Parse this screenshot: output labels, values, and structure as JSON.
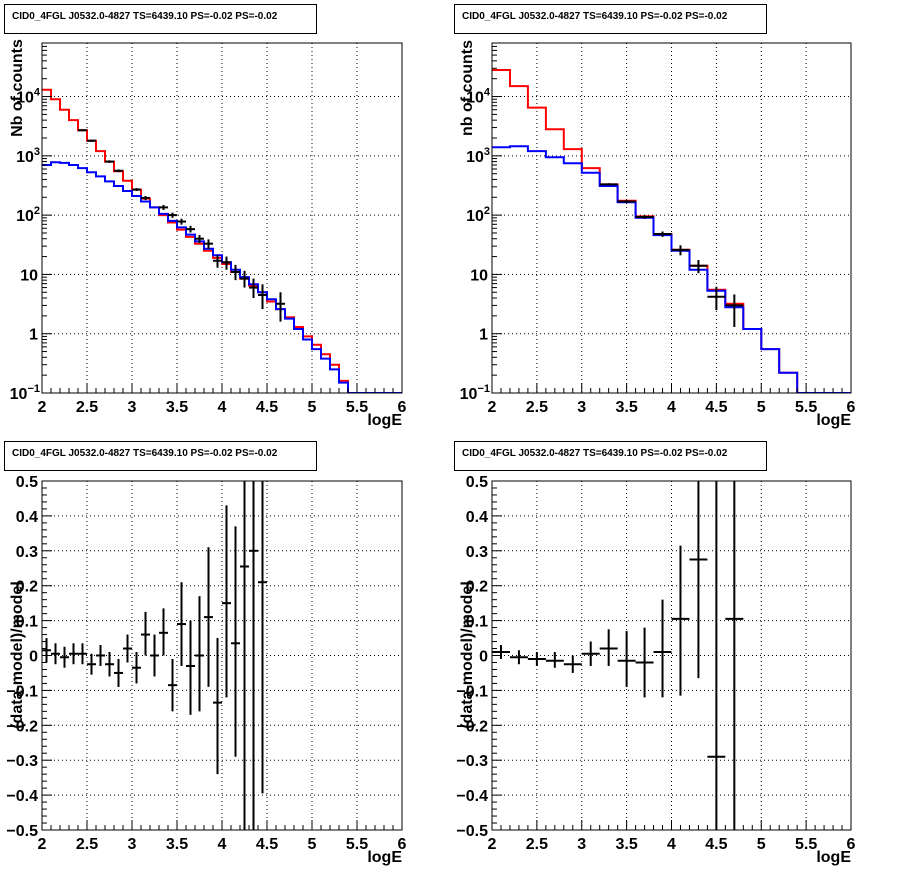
{
  "chart_data": [
    {
      "type": "line",
      "title": "CID0_4FGL J0532.0-4827 TS=6439.10 PS=-0.02 PS=-0.02",
      "xlabel": "logE",
      "ylabel": "Nb of counts",
      "xlim": [
        2,
        6
      ],
      "ylim": [
        0.1,
        80000
      ],
      "yscale": "log",
      "grid": true,
      "x_ticks": [
        "2",
        "2.5",
        "3",
        "3.5",
        "4",
        "4.5",
        "5",
        "5.5",
        "6"
      ],
      "y_ticks": [
        {
          "value": 0.1,
          "label": "10",
          "sup": "−1"
        },
        {
          "value": 1,
          "label": "1",
          "sup": ""
        },
        {
          "value": 10,
          "label": "10",
          "sup": ""
        },
        {
          "value": 100,
          "label": "10",
          "sup": "2"
        },
        {
          "value": 1000,
          "label": "10",
          "sup": "3"
        },
        {
          "value": 10000,
          "label": "10",
          "sup": "4"
        }
      ],
      "bin_edges": [
        2.0,
        2.1,
        2.2,
        2.3,
        2.4,
        2.5,
        2.6,
        2.7,
        2.8,
        2.9,
        3.0,
        3.1,
        3.2,
        3.3,
        3.4,
        3.5,
        3.6,
        3.7,
        3.8,
        3.9,
        4.0,
        4.1,
        4.2,
        4.3,
        4.4,
        4.5,
        4.6,
        4.7,
        4.8,
        4.9,
        5.0,
        5.1,
        5.2,
        5.3,
        5.4,
        5.5,
        5.6,
        5.7,
        5.8,
        5.9,
        6.0
      ],
      "series": [
        {
          "color": "#ff0000",
          "style": "step",
          "values": [
            13000,
            9000,
            6000,
            4000,
            2700,
            1800,
            1200,
            800,
            550,
            380,
            270,
            190,
            135,
            100,
            75,
            57,
            43,
            33,
            25,
            19,
            15,
            11,
            8.5,
            6.5,
            5,
            3.5,
            2.6,
            1.9,
            1.3,
            0.9,
            0.65,
            0.45,
            0.3,
            0.16,
            0.1,
            0.1,
            0.1,
            0.1,
            0.1,
            0.1
          ]
        },
        {
          "color": "#0000ff",
          "style": "step",
          "values": [
            700,
            780,
            760,
            700,
            620,
            530,
            450,
            370,
            310,
            255,
            210,
            170,
            135,
            105,
            80,
            62,
            47,
            36,
            27,
            21,
            16,
            12,
            9,
            6.8,
            5,
            3.8,
            2.6,
            1.8,
            1.2,
            0.8,
            0.55,
            0.38,
            0.25,
            0.15,
            0.1,
            0.1,
            0.1,
            0.1,
            0.1,
            0.1
          ]
        }
      ],
      "points": [
        {
          "x": 2.45,
          "y": 2700,
          "xerr": 0.05,
          "ylo": 2600,
          "yhi": 2800
        },
        {
          "x": 2.55,
          "y": 1800,
          "xerr": 0.05,
          "ylo": 1720,
          "yhi": 1880
        },
        {
          "x": 2.75,
          "y": 800,
          "xerr": 0.05,
          "ylo": 760,
          "yhi": 840
        },
        {
          "x": 2.85,
          "y": 560,
          "xerr": 0.05,
          "ylo": 530,
          "yhi": 590
        },
        {
          "x": 3.05,
          "y": 270,
          "xerr": 0.05,
          "ylo": 255,
          "yhi": 285
        },
        {
          "x": 3.15,
          "y": 195,
          "xerr": 0.05,
          "ylo": 180,
          "yhi": 210
        },
        {
          "x": 3.35,
          "y": 135,
          "xerr": 0.05,
          "ylo": 122,
          "yhi": 148
        },
        {
          "x": 3.45,
          "y": 100,
          "xerr": 0.05,
          "ylo": 90,
          "yhi": 110
        },
        {
          "x": 3.55,
          "y": 78,
          "xerr": 0.05,
          "ylo": 69,
          "yhi": 87
        },
        {
          "x": 3.65,
          "y": 58,
          "xerr": 0.05,
          "ylo": 51,
          "yhi": 66
        },
        {
          "x": 3.75,
          "y": 40,
          "xerr": 0.05,
          "ylo": 34,
          "yhi": 46
        },
        {
          "x": 3.85,
          "y": 33,
          "xerr": 0.05,
          "ylo": 27,
          "yhi": 39
        },
        {
          "x": 3.95,
          "y": 17,
          "xerr": 0.05,
          "ylo": 13,
          "yhi": 21
        },
        {
          "x": 4.05,
          "y": 16,
          "xerr": 0.05,
          "ylo": 12,
          "yhi": 20
        },
        {
          "x": 4.15,
          "y": 11,
          "xerr": 0.05,
          "ylo": 8,
          "yhi": 14.5
        },
        {
          "x": 4.25,
          "y": 8.5,
          "xerr": 0.05,
          "ylo": 6,
          "yhi": 11.5
        },
        {
          "x": 4.35,
          "y": 6,
          "xerr": 0.05,
          "ylo": 4,
          "yhi": 8.5
        },
        {
          "x": 4.45,
          "y": 4.5,
          "xerr": 0.05,
          "ylo": 2.6,
          "yhi": 6.8
        },
        {
          "x": 4.65,
          "y": 3.2,
          "xerr": 0.05,
          "ylo": 1.6,
          "yhi": 5
        }
      ]
    },
    {
      "type": "line",
      "title": "CID0_4FGL J0532.0-4827 TS=6439.10 PS=-0.02 PS=-0.02",
      "xlabel": "logE",
      "ylabel": "nb of counts",
      "xlim": [
        2,
        6
      ],
      "ylim": [
        0.1,
        80000
      ],
      "yscale": "log",
      "grid": true,
      "x_ticks": [
        "2",
        "2.5",
        "3",
        "3.5",
        "4",
        "4.5",
        "5",
        "5.5",
        "6"
      ],
      "y_ticks": [
        {
          "value": 0.1,
          "label": "10",
          "sup": "−1"
        },
        {
          "value": 1,
          "label": "1",
          "sup": ""
        },
        {
          "value": 10,
          "label": "10",
          "sup": ""
        },
        {
          "value": 100,
          "label": "10",
          "sup": "2"
        },
        {
          "value": 1000,
          "label": "10",
          "sup": "3"
        },
        {
          "value": 10000,
          "label": "10",
          "sup": "4"
        }
      ],
      "bin_edges": [
        2.0,
        2.2,
        2.4,
        2.6,
        2.8,
        3.0,
        3.2,
        3.4,
        3.6,
        3.8,
        4.0,
        4.2,
        4.4,
        4.6,
        4.8,
        5.0,
        5.2,
        5.4,
        5.6,
        5.8,
        6.0
      ],
      "series": [
        {
          "color": "#ff0000",
          "style": "step",
          "values": [
            28000,
            15000,
            6500,
            2800,
            1300,
            620,
            330,
            175,
            95,
            48,
            26,
            14,
            5.5,
            3.2,
            1.2,
            0.55,
            0.22,
            0.1,
            0.1,
            0.1
          ]
        },
        {
          "color": "#0000ff",
          "style": "step",
          "values": [
            1400,
            1450,
            1200,
            950,
            750,
            520,
            310,
            165,
            90,
            46,
            25,
            12,
            5.3,
            2.8,
            1.2,
            0.55,
            0.22,
            0.1,
            0.1,
            0.1
          ]
        }
      ],
      "points": [
        {
          "x": 3.3,
          "y": 330,
          "xerr": 0.1,
          "ylo": 315,
          "yhi": 345
        },
        {
          "x": 3.5,
          "y": 170,
          "xerr": 0.1,
          "ylo": 160,
          "yhi": 180
        },
        {
          "x": 3.7,
          "y": 93,
          "xerr": 0.1,
          "ylo": 86,
          "yhi": 100
        },
        {
          "x": 3.9,
          "y": 48,
          "xerr": 0.1,
          "ylo": 43,
          "yhi": 53
        },
        {
          "x": 4.1,
          "y": 26,
          "xerr": 0.1,
          "ylo": 21,
          "yhi": 31
        },
        {
          "x": 4.3,
          "y": 14,
          "xerr": 0.1,
          "ylo": 10.5,
          "yhi": 17.5
        },
        {
          "x": 4.5,
          "y": 4.2,
          "xerr": 0.1,
          "ylo": 2.5,
          "yhi": 6.2
        },
        {
          "x": 4.7,
          "y": 3.0,
          "xerr": 0.1,
          "ylo": 1.3,
          "yhi": 4.6
        }
      ]
    },
    {
      "type": "scatter",
      "title": "CID0_4FGL J0532.0-4827 TS=6439.10 PS=-0.02 PS=-0.02",
      "xlabel": "logE",
      "ylabel": "(data-model)/model",
      "xlim": [
        2,
        6
      ],
      "ylim": [
        -0.5,
        0.5
      ],
      "yscale": "linear",
      "grid": true,
      "x_ticks": [
        "2",
        "2.5",
        "3",
        "3.5",
        "4",
        "4.5",
        "5",
        "5.5",
        "6"
      ],
      "y_ticks": [
        {
          "value": -0.5,
          "label": "−0.5"
        },
        {
          "value": -0.4,
          "label": "−0.4"
        },
        {
          "value": -0.3,
          "label": "−0.3"
        },
        {
          "value": -0.2,
          "label": "−0.2"
        },
        {
          "value": -0.1,
          "label": "−0.1"
        },
        {
          "value": 0,
          "label": "0"
        },
        {
          "value": 0.1,
          "label": "0.1"
        },
        {
          "value": 0.2,
          "label": "0.2"
        },
        {
          "value": 0.3,
          "label": "0.3"
        },
        {
          "value": 0.4,
          "label": "0.4"
        },
        {
          "value": 0.5,
          "label": "0.5"
        }
      ],
      "points": [
        {
          "x": 2.05,
          "y": 0.015,
          "xerr": 0.05,
          "ylo": -0.02,
          "yhi": 0.05
        },
        {
          "x": 2.15,
          "y": 0.005,
          "xerr": 0.05,
          "ylo": -0.025,
          "yhi": 0.035
        },
        {
          "x": 2.25,
          "y": -0.005,
          "xerr": 0.05,
          "ylo": -0.035,
          "yhi": 0.025
        },
        {
          "x": 2.35,
          "y": 0.005,
          "xerr": 0.05,
          "ylo": -0.025,
          "yhi": 0.035
        },
        {
          "x": 2.45,
          "y": 0.005,
          "xerr": 0.05,
          "ylo": -0.025,
          "yhi": 0.035
        },
        {
          "x": 2.55,
          "y": -0.025,
          "xerr": 0.05,
          "ylo": -0.055,
          "yhi": 0.005
        },
        {
          "x": 2.65,
          "y": 0.0,
          "xerr": 0.05,
          "ylo": -0.03,
          "yhi": 0.03
        },
        {
          "x": 2.75,
          "y": -0.025,
          "xerr": 0.05,
          "ylo": -0.06,
          "yhi": 0.01
        },
        {
          "x": 2.85,
          "y": -0.05,
          "xerr": 0.05,
          "ylo": -0.09,
          "yhi": -0.01
        },
        {
          "x": 2.95,
          "y": 0.02,
          "xerr": 0.05,
          "ylo": -0.02,
          "yhi": 0.06
        },
        {
          "x": 3.05,
          "y": -0.035,
          "xerr": 0.05,
          "ylo": -0.08,
          "yhi": 0.01
        },
        {
          "x": 3.15,
          "y": 0.06,
          "xerr": 0.05,
          "ylo": 0.0,
          "yhi": 0.125
        },
        {
          "x": 3.25,
          "y": 0.0,
          "xerr": 0.05,
          "ylo": -0.06,
          "yhi": 0.06
        },
        {
          "x": 3.35,
          "y": 0.065,
          "xerr": 0.05,
          "ylo": 0.0,
          "yhi": 0.135
        },
        {
          "x": 3.45,
          "y": -0.085,
          "xerr": 0.05,
          "ylo": -0.16,
          "yhi": -0.01
        },
        {
          "x": 3.55,
          "y": 0.09,
          "xerr": 0.05,
          "ylo": -0.03,
          "yhi": 0.21
        },
        {
          "x": 3.65,
          "y": -0.03,
          "xerr": 0.05,
          "ylo": -0.17,
          "yhi": 0.1
        },
        {
          "x": 3.75,
          "y": 0.0,
          "xerr": 0.05,
          "ylo": -0.16,
          "yhi": 0.17
        },
        {
          "x": 3.85,
          "y": 0.11,
          "xerr": 0.05,
          "ylo": -0.09,
          "yhi": 0.31
        },
        {
          "x": 3.95,
          "y": -0.135,
          "xerr": 0.05,
          "ylo": -0.34,
          "yhi": 0.05
        },
        {
          "x": 4.05,
          "y": 0.15,
          "xerr": 0.05,
          "ylo": -0.12,
          "yhi": 0.43
        },
        {
          "x": 4.15,
          "y": 0.035,
          "xerr": 0.05,
          "ylo": -0.29,
          "yhi": 0.37
        },
        {
          "x": 4.25,
          "y": 0.255,
          "xerr": 0.05,
          "ylo": -0.5,
          "yhi": 0.5
        },
        {
          "x": 4.35,
          "y": 0.3,
          "xerr": 0.05,
          "ylo": -0.5,
          "yhi": 0.5
        },
        {
          "x": 4.45,
          "y": 0.21,
          "xerr": 0.05,
          "ylo": -0.395,
          "yhi": 0.5
        }
      ]
    },
    {
      "type": "scatter",
      "title": "CID0_4FGL J0532.0-4827 TS=6439.10 PS=-0.02 PS=-0.02",
      "xlabel": "logE",
      "ylabel": "(data-model)/model",
      "xlim": [
        2,
        6
      ],
      "ylim": [
        -0.5,
        0.5
      ],
      "yscale": "linear",
      "grid": true,
      "x_ticks": [
        "2",
        "2.5",
        "3",
        "3.5",
        "4",
        "4.5",
        "5",
        "5.5",
        "6"
      ],
      "y_ticks": [
        {
          "value": -0.5,
          "label": "−0.5"
        },
        {
          "value": -0.4,
          "label": "−0.4"
        },
        {
          "value": -0.3,
          "label": "−0.3"
        },
        {
          "value": -0.2,
          "label": "−0.2"
        },
        {
          "value": -0.1,
          "label": "−0.1"
        },
        {
          "value": 0,
          "label": "0"
        },
        {
          "value": 0.1,
          "label": "0.1"
        },
        {
          "value": 0.2,
          "label": "0.2"
        },
        {
          "value": 0.3,
          "label": "0.3"
        },
        {
          "value": 0.4,
          "label": "0.4"
        },
        {
          "value": 0.5,
          "label": "0.5"
        }
      ],
      "points": [
        {
          "x": 2.1,
          "y": 0.01,
          "xerr": 0.1,
          "ylo": -0.01,
          "yhi": 0.03
        },
        {
          "x": 2.3,
          "y": -0.005,
          "xerr": 0.1,
          "ylo": -0.025,
          "yhi": 0.015
        },
        {
          "x": 2.5,
          "y": -0.01,
          "xerr": 0.1,
          "ylo": -0.03,
          "yhi": 0.01
        },
        {
          "x": 2.7,
          "y": -0.015,
          "xerr": 0.1,
          "ylo": -0.035,
          "yhi": 0.01
        },
        {
          "x": 2.9,
          "y": -0.025,
          "xerr": 0.1,
          "ylo": -0.05,
          "yhi": 0.0
        },
        {
          "x": 3.1,
          "y": 0.005,
          "xerr": 0.1,
          "ylo": -0.03,
          "yhi": 0.04
        },
        {
          "x": 3.3,
          "y": 0.02,
          "xerr": 0.1,
          "ylo": -0.03,
          "yhi": 0.075
        },
        {
          "x": 3.5,
          "y": -0.015,
          "xerr": 0.1,
          "ylo": -0.09,
          "yhi": 0.07
        },
        {
          "x": 3.7,
          "y": -0.02,
          "xerr": 0.1,
          "ylo": -0.12,
          "yhi": 0.08
        },
        {
          "x": 3.9,
          "y": 0.01,
          "xerr": 0.1,
          "ylo": -0.12,
          "yhi": 0.16
        },
        {
          "x": 4.1,
          "y": 0.105,
          "xerr": 0.1,
          "ylo": -0.115,
          "yhi": 0.315
        },
        {
          "x": 4.3,
          "y": 0.275,
          "xerr": 0.1,
          "ylo": -0.065,
          "yhi": 0.5
        },
        {
          "x": 4.5,
          "y": -0.29,
          "xerr": 0.1,
          "ylo": -0.5,
          "yhi": 0.5
        },
        {
          "x": 4.7,
          "y": 0.105,
          "xerr": 0.1,
          "ylo": -0.5,
          "yhi": 0.5
        }
      ]
    }
  ]
}
